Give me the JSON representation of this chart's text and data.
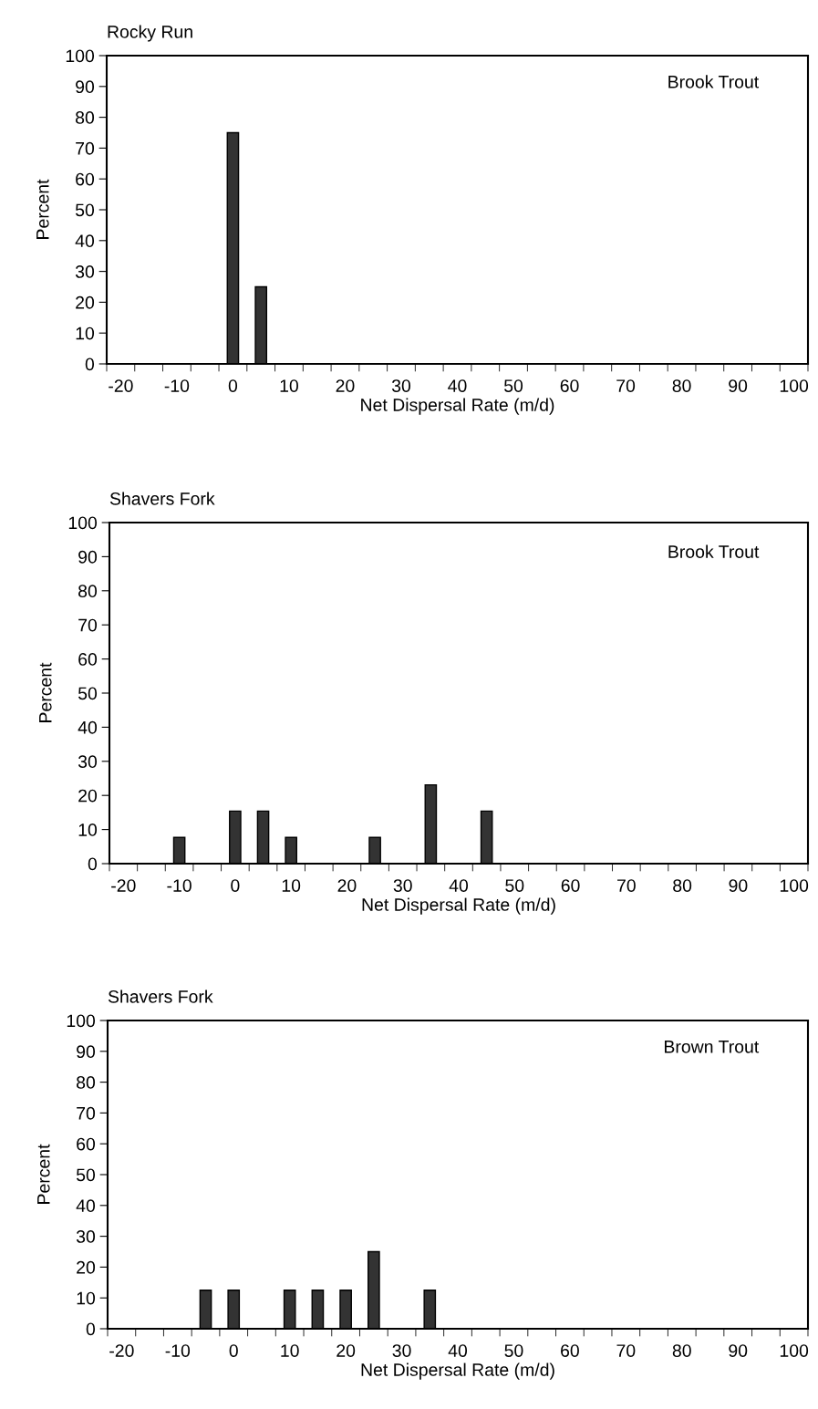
{
  "chart_data": [
    {
      "type": "bar",
      "title": "Rocky Run",
      "annotations": [
        "Brook Trout"
      ],
      "xlabel": "Net Dispersal Rate (m/d)",
      "ylabel": "Percent",
      "color": "#333333",
      "categories": [
        "-20",
        null,
        "-10",
        null,
        "0",
        null,
        "10",
        null,
        "20",
        null,
        "30",
        null,
        "40",
        null,
        "50",
        null,
        "60",
        null,
        "70",
        null,
        "80",
        null,
        "90",
        null,
        "100"
      ],
      "values": [
        0,
        0,
        0,
        0,
        75,
        25,
        0,
        0,
        0,
        0,
        0,
        0,
        0,
        0,
        0,
        0,
        0,
        0,
        0,
        0,
        0,
        0,
        0,
        0,
        0
      ],
      "ylim": [
        0,
        100
      ],
      "yticks": [
        0,
        10,
        20,
        30,
        40,
        50,
        60,
        70,
        80,
        90,
        100
      ],
      "grid": false,
      "legend": false
    },
    {
      "type": "bar",
      "title": "Shavers Fork",
      "annotations": [
        "Brook Trout"
      ],
      "xlabel": "Net Dispersal Rate (m/d)",
      "ylabel": "Percent",
      "color": "#333333",
      "categories": [
        "-20",
        null,
        "-10",
        null,
        "0",
        null,
        "10",
        null,
        "20",
        null,
        "30",
        null,
        "40",
        null,
        "50",
        null,
        "60",
        null,
        "70",
        null,
        "80",
        null,
        "90",
        null,
        "100"
      ],
      "values": [
        0,
        0,
        7.7,
        0,
        15.4,
        15.4,
        7.7,
        0,
        0,
        7.7,
        0,
        23.1,
        0,
        15.4,
        0,
        0,
        0,
        0,
        0,
        0,
        0,
        0,
        0,
        0,
        0
      ],
      "ylim": [
        0,
        100
      ],
      "yticks": [
        0,
        10,
        20,
        30,
        40,
        50,
        60,
        70,
        80,
        90,
        100
      ],
      "grid": false,
      "legend": false
    },
    {
      "type": "bar",
      "title": "Shavers Fork",
      "annotations": [
        "Brown Trout"
      ],
      "xlabel": "Net Dispersal Rate (m/d)",
      "ylabel": "Percent",
      "color": "#333333",
      "categories": [
        "-20",
        null,
        "-10",
        null,
        "0",
        null,
        "10",
        null,
        "20",
        null,
        "30",
        null,
        "40",
        null,
        "50",
        null,
        "60",
        null,
        "70",
        null,
        "80",
        null,
        "90",
        null,
        "100"
      ],
      "values": [
        0,
        0,
        0,
        12.5,
        12.5,
        0,
        12.5,
        12.5,
        12.5,
        25,
        0,
        12.5,
        0,
        0,
        0,
        0,
        0,
        0,
        0,
        0,
        0,
        0,
        0,
        0,
        0
      ],
      "ylim": [
        0,
        100
      ],
      "yticks": [
        0,
        10,
        20,
        30,
        40,
        50,
        60,
        70,
        80,
        90,
        100
      ],
      "grid": false,
      "legend": false
    }
  ]
}
